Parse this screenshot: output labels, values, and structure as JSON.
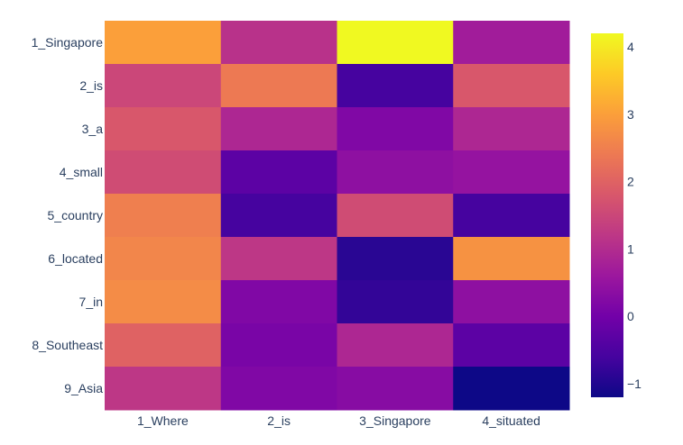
{
  "chart_data": {
    "type": "heatmap",
    "title": "",
    "xlabel": "",
    "ylabel": "",
    "x_categories": [
      "1_Where",
      "2_is",
      "3_Singapore",
      "4_situated"
    ],
    "y_categories": [
      "1_Singapore",
      "2_is",
      "3_a",
      "4_small",
      "5_country",
      "6_located",
      "7_in",
      "8_Southeast",
      "9_Asia"
    ],
    "z": [
      [
        3.0,
        1.1,
        4.2,
        0.7
      ],
      [
        1.5,
        2.4,
        -0.6,
        1.8
      ],
      [
        1.8,
        0.9,
        0.2,
        0.9
      ],
      [
        1.6,
        -0.3,
        0.4,
        0.5
      ],
      [
        2.5,
        -0.6,
        1.6,
        -0.6
      ],
      [
        2.6,
        1.2,
        -0.9,
        2.8
      ],
      [
        2.7,
        0.2,
        -0.8,
        0.4
      ],
      [
        2.0,
        0.1,
        0.9,
        -0.3
      ],
      [
        1.2,
        0.2,
        0.3,
        -1.2
      ]
    ],
    "zmin": -1.2,
    "zmax": 4.2,
    "colorscale": "plasma",
    "colorbar_ticks": [
      -1,
      0,
      1,
      2,
      3,
      4
    ],
    "colorbar_tick_labels": [
      "−1",
      "0",
      "1",
      "2",
      "3",
      "4"
    ]
  }
}
